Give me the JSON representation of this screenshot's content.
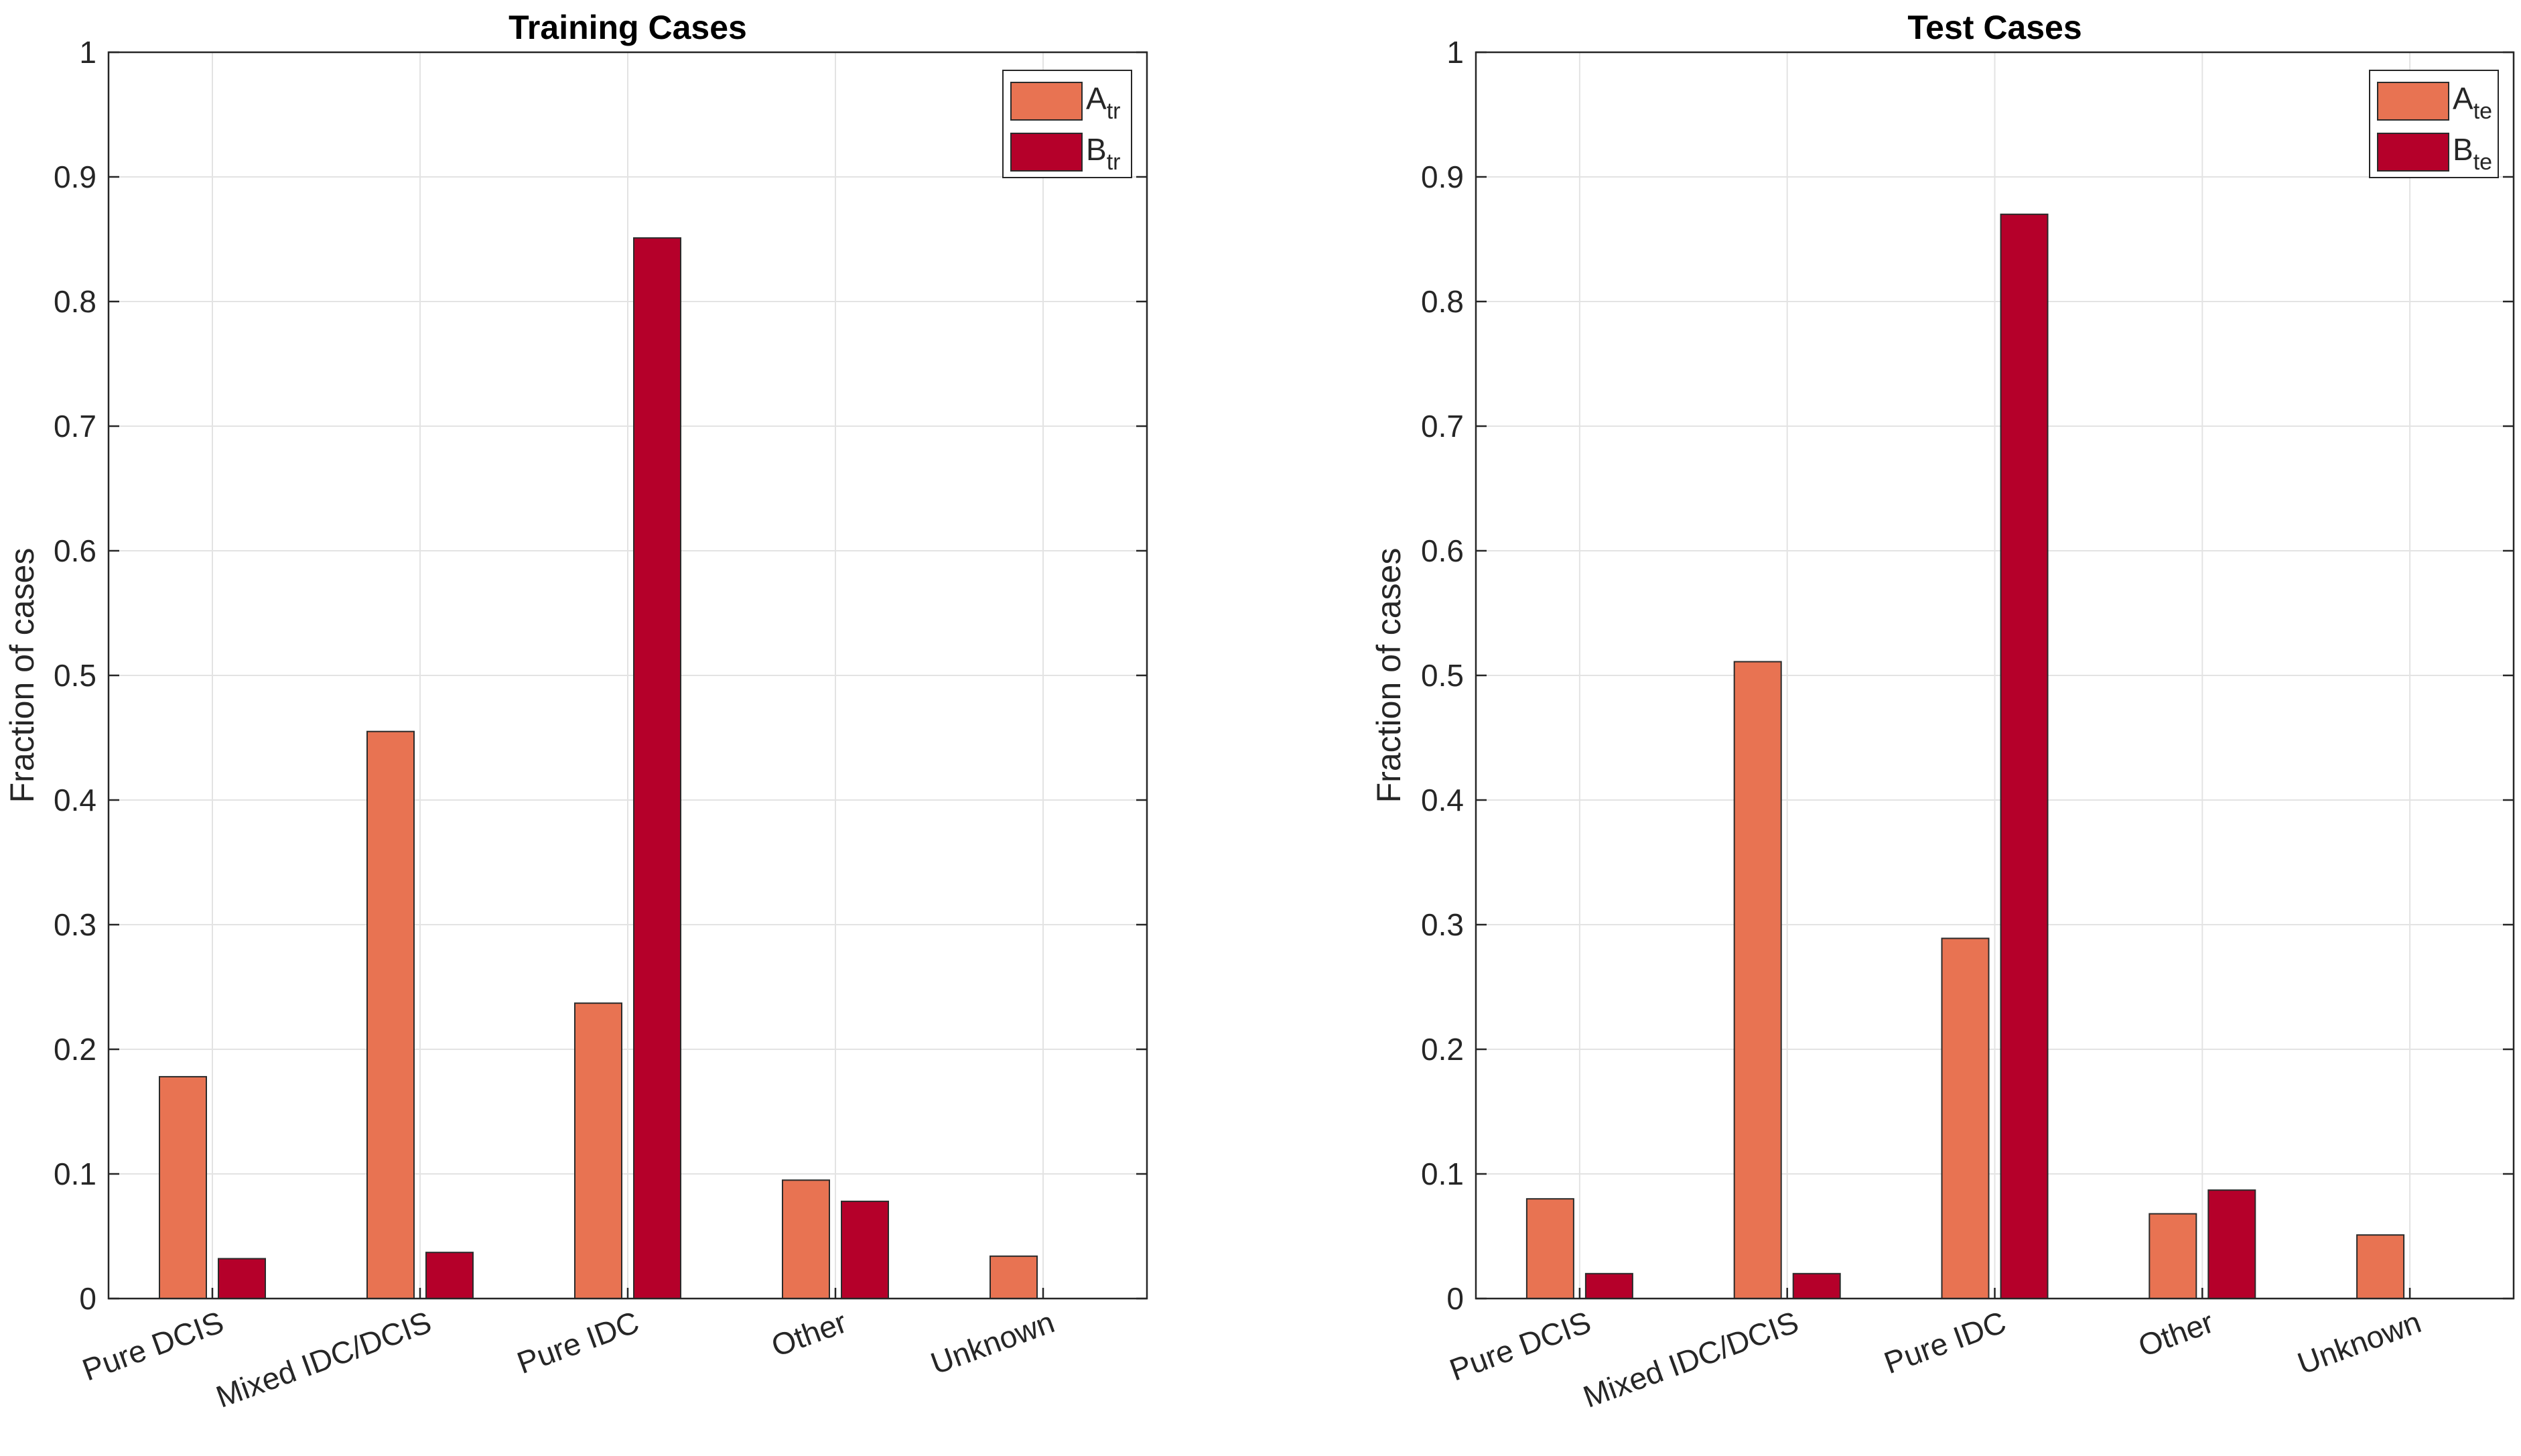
{
  "chart_data": [
    {
      "type": "bar",
      "title": "Training Cases",
      "xlabel": "",
      "ylabel": "Fraction of cases",
      "ylim": [
        0,
        1
      ],
      "yticks": [
        "0",
        "0.1",
        "0.2",
        "0.3",
        "0.4",
        "0.5",
        "0.6",
        "0.7",
        "0.8",
        "0.9",
        "1"
      ],
      "grid": true,
      "legend_position": "top-right",
      "categories": [
        "Pure DCIS",
        "Mixed IDC/DCIS",
        "Pure IDC",
        "Other",
        "Unknown"
      ],
      "series": [
        {
          "name": "A",
          "subscript": "tr",
          "color": "#E87352",
          "values": [
            0.178,
            0.455,
            0.237,
            0.095,
            0.034
          ]
        },
        {
          "name": "B",
          "subscript": "tr",
          "color": "#B5002A",
          "values": [
            0.032,
            0.037,
            0.851,
            0.078,
            0.0
          ]
        }
      ]
    },
    {
      "type": "bar",
      "title": "Test Cases",
      "xlabel": "",
      "ylabel": "Fraction of cases",
      "ylim": [
        0,
        1
      ],
      "yticks": [
        "0",
        "0.1",
        "0.2",
        "0.3",
        "0.4",
        "0.5",
        "0.6",
        "0.7",
        "0.8",
        "0.9",
        "1"
      ],
      "grid": true,
      "legend_position": "top-right",
      "categories": [
        "Pure DCIS",
        "Mixed IDC/DCIS",
        "Pure IDC",
        "Other",
        "Unknown"
      ],
      "series": [
        {
          "name": "A",
          "subscript": "te",
          "color": "#E87352",
          "values": [
            0.08,
            0.511,
            0.289,
            0.068,
            0.051
          ]
        },
        {
          "name": "B",
          "subscript": "te",
          "color": "#B5002A",
          "values": [
            0.02,
            0.02,
            0.87,
            0.087,
            0.0
          ]
        }
      ]
    }
  ]
}
